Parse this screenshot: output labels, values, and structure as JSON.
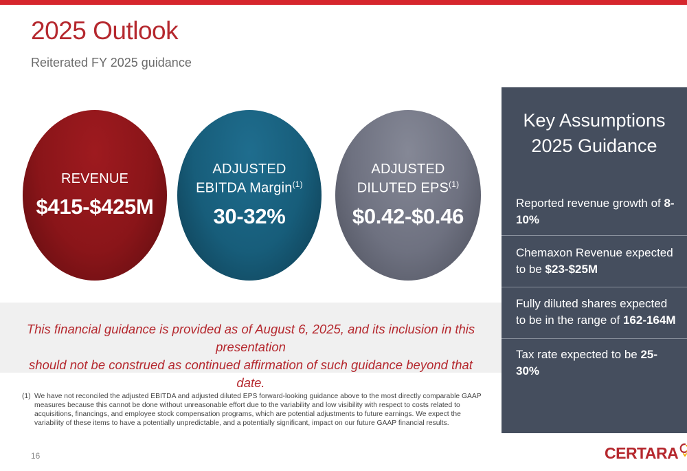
{
  "header": {
    "title": "2025 Outlook",
    "subtitle": "Reiterated FY 2025 guidance"
  },
  "guidance": [
    {
      "label": "REVENUE",
      "sup": "",
      "value": "$415-$425M",
      "color": "#8a1519"
    },
    {
      "label_line1": "ADJUSTED",
      "label_line2": "EBITDA Margin",
      "sup": "(1)",
      "value": "30-32%",
      "color": "#175d7a"
    },
    {
      "label_line1": "ADJUSTED",
      "label_line2": "DILUTED EPS",
      "sup": "(1)",
      "value": "$0.42-$0.46",
      "color": "#6e7180"
    }
  ],
  "disclaimer": {
    "line1": "This financial guidance is provided as of August 6, 2025, and its inclusion in this presentation",
    "line2": "should not be construed as continued affirmation of such guidance beyond that date."
  },
  "footnote": {
    "number": "(1)",
    "text": "We have not reconciled the adjusted EBITDA and adjusted diluted EPS forward-looking guidance above to the most directly comparable GAAP measures because this cannot be done without unreasonable effort due to the variability and low visibility with respect to costs related to acquisitions, financings, and employee stock compensation programs, which are potential adjustments to future earnings. We expect the variability of these items to have a potentially unpredictable, and a potentially significant, impact on our future GAAP financial results."
  },
  "key_assumptions": {
    "title_line1": "Key Assumptions",
    "title_line2": "2025 Guidance",
    "items": [
      {
        "text": "Reported revenue growth of ",
        "bold": "8-10%"
      },
      {
        "text": "Chemaxon Revenue expected to be ",
        "bold": "$23-$25M"
      },
      {
        "text": "Fully diluted shares expected to be in the range of ",
        "bold": "162-164M"
      },
      {
        "text": "Tax rate expected to be ",
        "bold": "25-30%"
      }
    ]
  },
  "footer": {
    "page_number": "16",
    "logo_text": "CERTARA"
  },
  "colors": {
    "accent_red": "#b5282e",
    "top_bar": "#d6262d",
    "panel_bg": "#454e5e"
  }
}
